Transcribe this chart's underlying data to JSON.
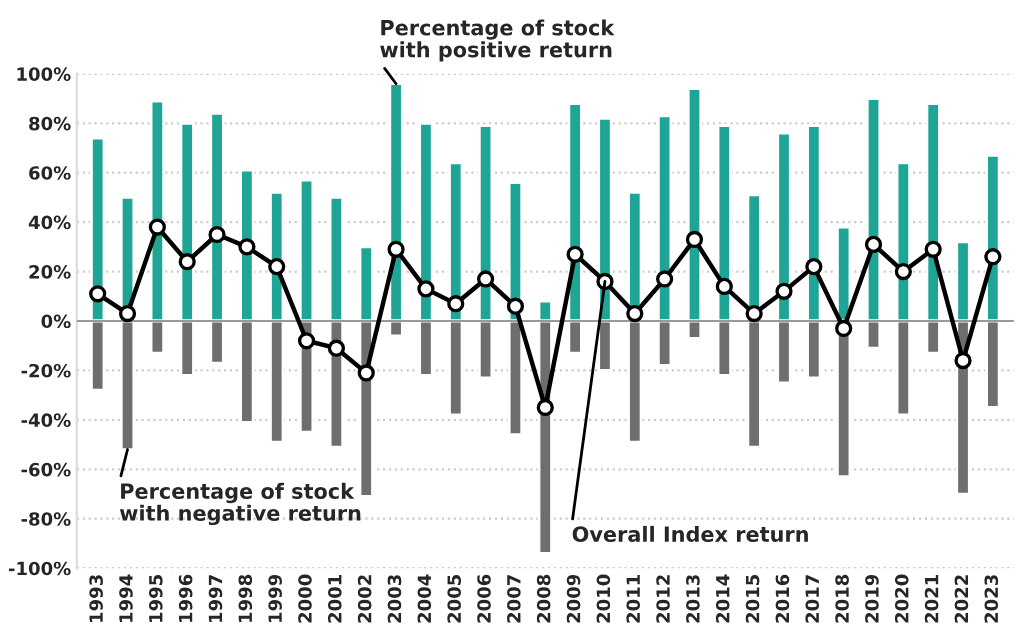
{
  "chart_data": {
    "type": "bar",
    "categories": [
      "1993",
      "1994",
      "1995",
      "1996",
      "1997",
      "1998",
      "1999",
      "2000",
      "2001",
      "2002",
      "2003",
      "2004",
      "2005",
      "2006",
      "2007",
      "2008",
      "2009",
      "2010",
      "2011",
      "2012",
      "2013",
      "2014",
      "2015",
      "2016",
      "2017",
      "2018",
      "2019",
      "2020",
      "2021",
      "2022",
      "2023"
    ],
    "series": [
      {
        "color": "#1fa595",
        "values": [
          74,
          50,
          89,
          80,
          84,
          61,
          52,
          57,
          50,
          30,
          96,
          80,
          64,
          79,
          56,
          8,
          88,
          82,
          52,
          83,
          94,
          79,
          51,
          76,
          79,
          38,
          90,
          64,
          88,
          32,
          67
        ]
      },
      {
        "color": "#6e6e6e",
        "values": [
          -28,
          -52,
          -13,
          -22,
          -17,
          -41,
          -49,
          -45,
          -51,
          -71,
          -6,
          -22,
          -38,
          -23,
          -46,
          -94,
          -13,
          -20,
          -49,
          -18,
          -7,
          -22,
          -51,
          -25,
          -23,
          -63,
          -11,
          -38,
          -13,
          -70,
          -35
        ]
      },
      {
        "type": "line",
        "color": "#000000",
        "marker": "circle",
        "values": [
          11,
          3,
          38,
          24,
          35,
          30,
          22,
          -8,
          -11,
          -21,
          29,
          13,
          7,
          17,
          6,
          -35,
          27,
          16,
          3,
          17,
          33,
          14,
          3,
          12,
          22,
          -3,
          31,
          20,
          29,
          -16,
          26
        ]
      }
    ],
    "ylim": [
      -100,
      100
    ],
    "yticks": [
      {
        "value": -100,
        "label": "-100%"
      },
      {
        "value": -80,
        "label": "-80%"
      },
      {
        "value": -60,
        "label": "-60%"
      },
      {
        "value": -40,
        "label": "-40%"
      },
      {
        "value": -20,
        "label": "-20%"
      },
      {
        "value": 0,
        "label": "0%"
      },
      {
        "value": 20,
        "label": "20%"
      },
      {
        "value": 40,
        "label": "40%"
      },
      {
        "value": 60,
        "label": "60%"
      },
      {
        "value": 80,
        "label": "80%"
      },
      {
        "value": 100,
        "label": "100%"
      }
    ],
    "grid": "y",
    "stacked": true,
    "legend": false,
    "annotations": [
      {
        "text": "Percentage of stock\nwith positive return",
        "x": "2003",
        "y": 96
      },
      {
        "text": "Percentage of stock\nwith negative return",
        "x": "1994",
        "y": -52
      },
      {
        "text": "Overall Index return",
        "x": "2010",
        "y": 16
      }
    ]
  }
}
